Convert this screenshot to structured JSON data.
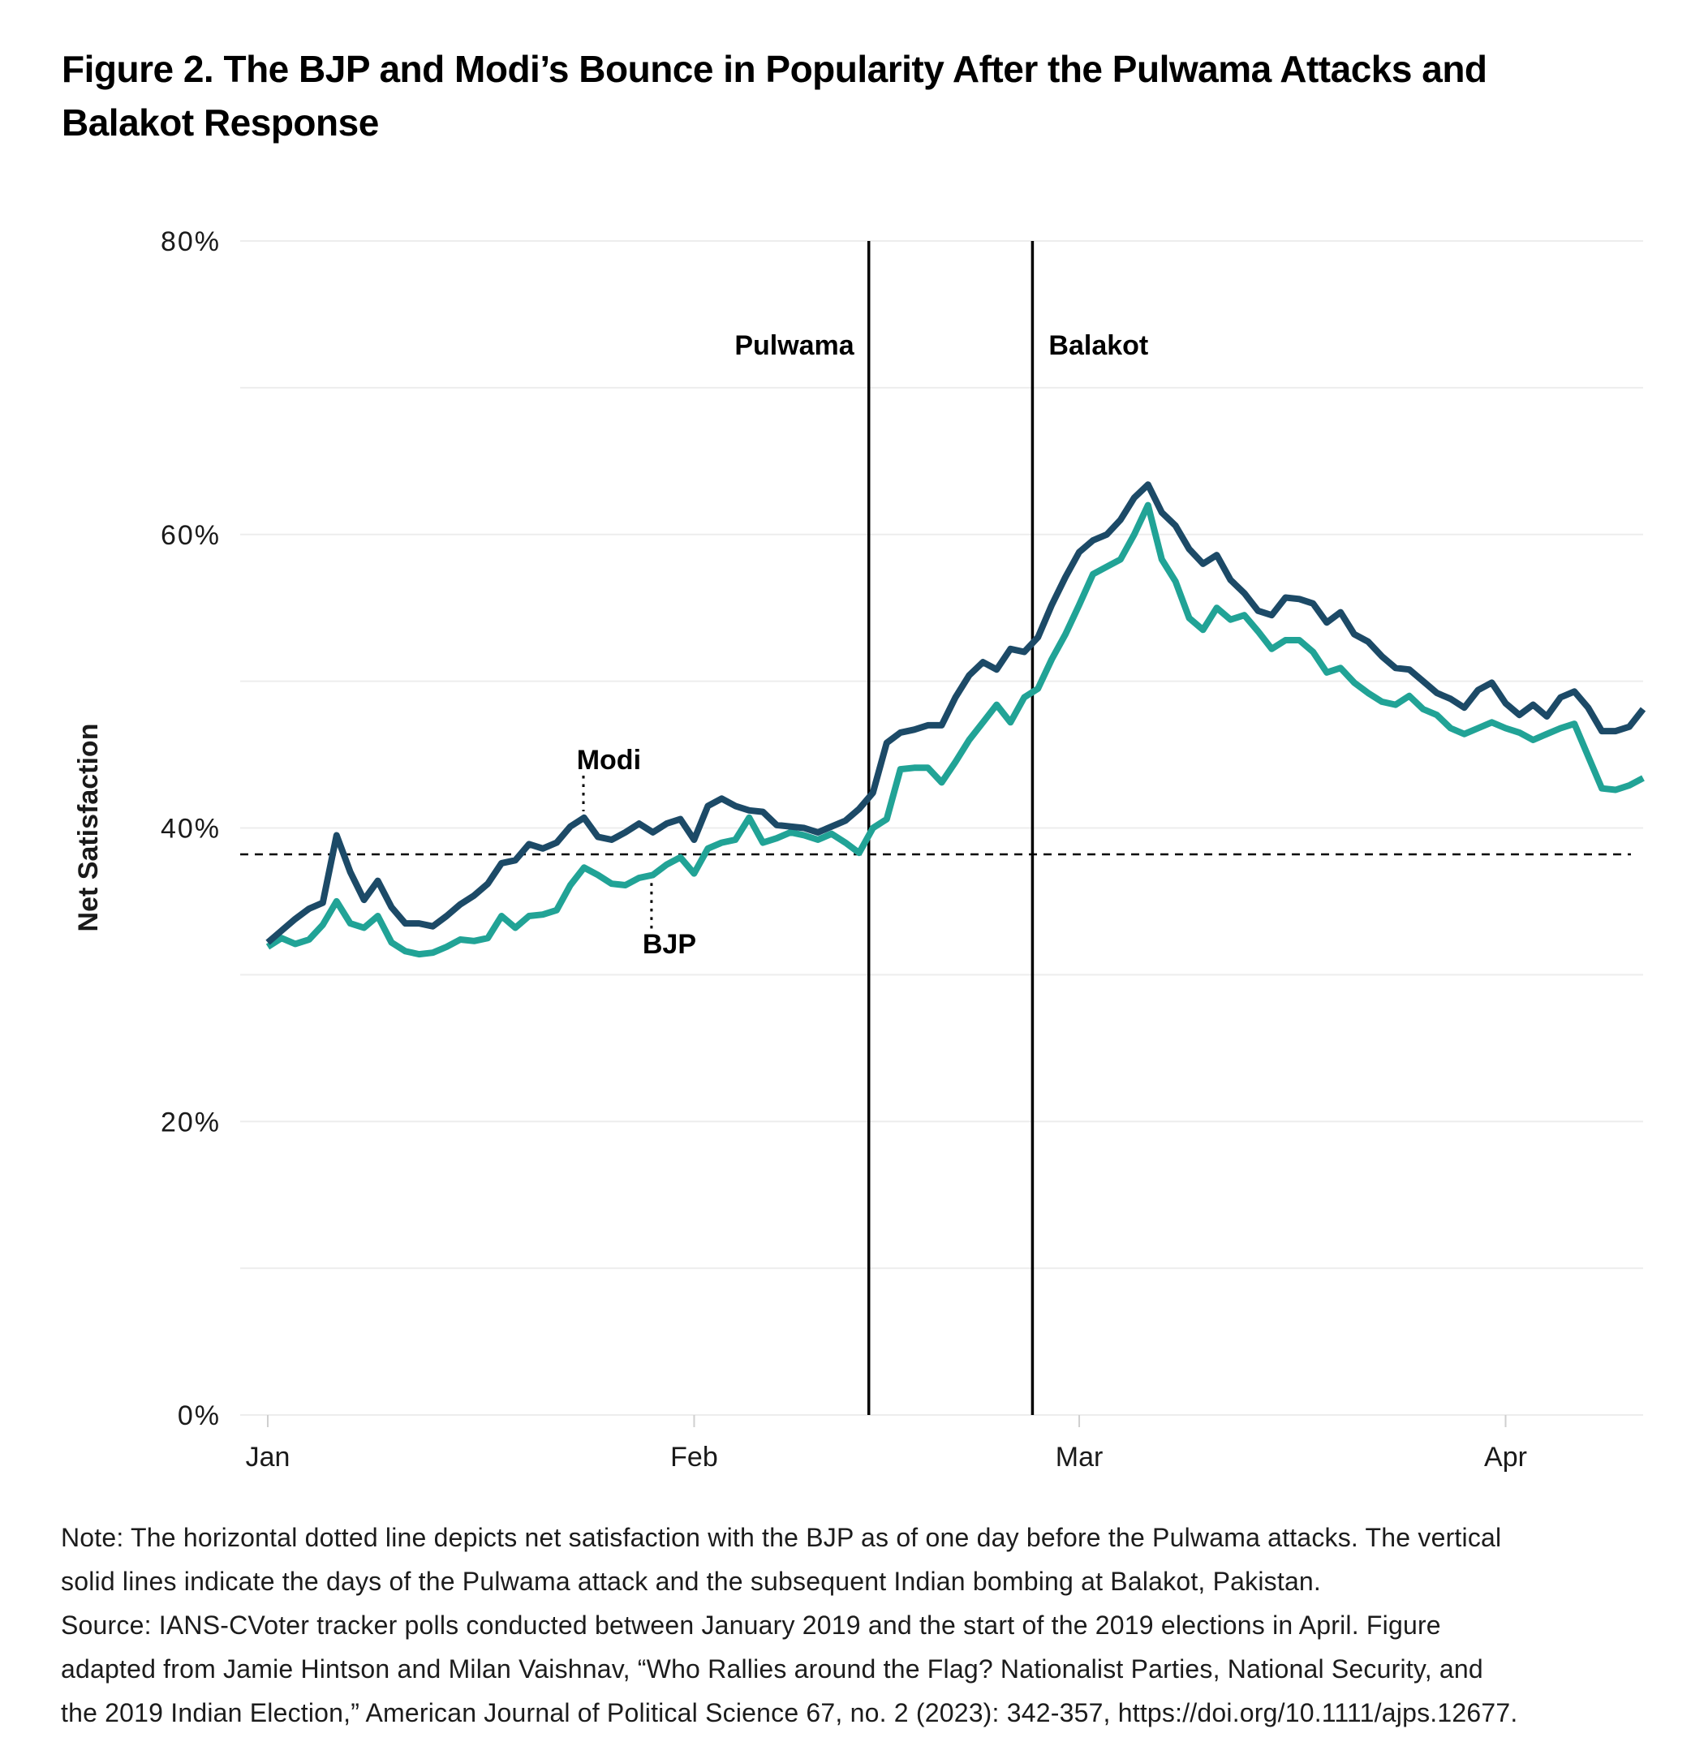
{
  "figure": {
    "title_line1": "Figure 2. The BJP and Modi’s Bounce in Popularity After the Pulwama Attacks and",
    "title_line2": "Balakot Response",
    "note_lines": [
      "Note: The horizontal dotted line depicts net satisfaction with the BJP as of one day before the Pulwama attacks. The vertical",
      "solid lines indicate the days of the Pulwama attack and the subsequent Indian bombing at Balakot, Pakistan.",
      "Source: IANS-CVoter tracker polls conducted between January 2019 and the start of the 2019 elections in April. Figure",
      "adapted from Jamie Hintson and Milan Vaishnav, “Who Rallies around the Flag? Nationalist Parties, National Security, and",
      "the 2019 Indian Election,” American Journal of Political Science 67, no. 2 (2023): 342-357, https://doi.org/10.1111/ajps.12677."
    ]
  },
  "colors": {
    "modi_line": "#1C4A67",
    "bjp_line": "#21A396",
    "gridline": "#ededed",
    "tick_mark": "#cfcfcf",
    "annotation": "#000000",
    "text": "#1a1a1a"
  },
  "chart_data": {
    "type": "line",
    "title": "Figure 2. The BJP and Modi’s Bounce in Popularity After the Pulwama Attacks and Balakot Response",
    "xlabel": "",
    "ylabel": "Net Satisfaction",
    "ylim": [
      0,
      80
    ],
    "xlim_days_from_jan1_2019": [
      0,
      100
    ],
    "grid": "horizontal-only",
    "legend_position": "inline-annotations",
    "y_ticks": [
      {
        "label": "80%",
        "value": 80
      },
      {
        "label": "60%",
        "value": 60
      },
      {
        "label": "40%",
        "value": 40
      },
      {
        "label": "20%",
        "value": 20
      },
      {
        "label": "0%",
        "value": 0
      }
    ],
    "minor_gridline_values": [
      70,
      50,
      30,
      10
    ],
    "x_ticks": [
      {
        "label": "Jan",
        "day": 0
      },
      {
        "label": "Feb",
        "day": 31
      },
      {
        "label": "Mar",
        "day": 59
      },
      {
        "label": "Apr",
        "day": 90
      }
    ],
    "reference_line": {
      "value": 38.2,
      "style": "dashed",
      "meaning": "Net satisfaction with the BJP one day before the Pulwama attacks"
    },
    "events": [
      {
        "label": "Pulwama",
        "day": 43.7,
        "label_side": "left"
      },
      {
        "label": "Balakot",
        "day": 55.6,
        "label_side": "right"
      }
    ],
    "series": [
      {
        "name": "Modi",
        "color": "#1C4A67",
        "label_anchor_day": 24.8,
        "leader_day": 22.95,
        "values": [
          32.2,
          33.0,
          33.8,
          34.5,
          34.9,
          39.5,
          37.0,
          35.1,
          36.4,
          34.6,
          33.5,
          33.5,
          33.3,
          34.0,
          34.8,
          35.4,
          36.2,
          37.6,
          37.8,
          38.9,
          38.6,
          39.0,
          40.1,
          40.7,
          39.4,
          39.2,
          39.7,
          40.3,
          39.7,
          40.3,
          40.6,
          39.2,
          41.5,
          42.0,
          41.5,
          41.2,
          41.1,
          40.2,
          40.1,
          40.0,
          39.7,
          40.1,
          40.5,
          41.3,
          42.4,
          45.8,
          46.5,
          46.7,
          47.0,
          47.0,
          48.9,
          50.4,
          51.3,
          50.8,
          52.2,
          52.0,
          53.0,
          55.2,
          57.1,
          58.8,
          59.6,
          60.0,
          61.0,
          62.5,
          63.4,
          61.5,
          60.6,
          59.0,
          58.0,
          58.6,
          56.9,
          56.0,
          54.8,
          54.5,
          55.7,
          55.6,
          55.3,
          54.0,
          54.7,
          53.2,
          52.7,
          51.7,
          50.9,
          50.8,
          50.0,
          49.2,
          48.8,
          48.2,
          49.4,
          49.9,
          48.5,
          47.7,
          48.4,
          47.6,
          48.9,
          49.3,
          48.2,
          46.6,
          46.6,
          46.9,
          48.1
        ]
      },
      {
        "name": "BJP",
        "color": "#21A396",
        "label_anchor_day": 29.2,
        "leader_day": 27.9,
        "values": [
          31.9,
          32.5,
          32.1,
          32.4,
          33.4,
          35.0,
          33.5,
          33.2,
          34.0,
          32.2,
          31.6,
          31.4,
          31.5,
          31.9,
          32.4,
          32.3,
          32.5,
          34.0,
          33.2,
          34.0,
          34.1,
          34.4,
          36.1,
          37.3,
          36.8,
          36.2,
          36.1,
          36.6,
          36.8,
          37.5,
          38.0,
          36.9,
          38.6,
          39.0,
          39.2,
          40.7,
          39.0,
          39.3,
          39.7,
          39.5,
          39.2,
          39.6,
          39.0,
          38.3,
          40.0,
          40.6,
          44.0,
          44.1,
          44.1,
          43.1,
          44.5,
          46.0,
          47.2,
          48.4,
          47.2,
          48.9,
          49.5,
          51.5,
          53.2,
          55.2,
          57.3,
          57.8,
          58.3,
          60.0,
          62.0,
          58.3,
          56.8,
          54.3,
          53.5,
          55.0,
          54.2,
          54.5,
          53.4,
          52.2,
          52.8,
          52.8,
          52.0,
          50.6,
          50.9,
          49.9,
          49.2,
          48.6,
          48.4,
          49.0,
          48.1,
          47.7,
          46.8,
          46.4,
          46.8,
          47.2,
          46.8,
          46.5,
          46.0,
          46.4,
          46.8,
          47.1,
          44.9,
          42.7,
          42.6,
          42.9,
          43.4
        ]
      }
    ]
  }
}
